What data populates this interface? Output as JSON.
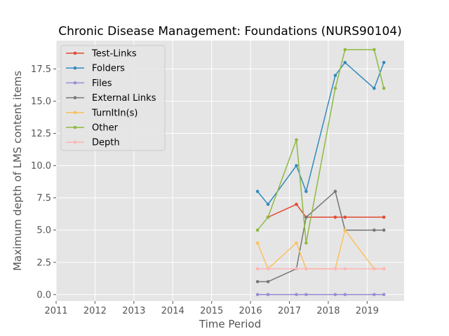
{
  "chart_data": {
    "type": "line",
    "title": "Chronic Disease Management: Foundations (NURS90104)",
    "xlabel": "Time Period",
    "ylabel": "Maximum depth of LMS content items",
    "xlim": [
      2011.0,
      2019.95
    ],
    "ylim": [
      -0.5,
      19.7
    ],
    "xticks": [
      2011,
      2012,
      2013,
      2014,
      2015,
      2016,
      2017,
      2018,
      2019
    ],
    "yticks": [
      0.0,
      2.5,
      5.0,
      7.5,
      10.0,
      12.5,
      15.0,
      17.5
    ],
    "ytick_labels": [
      "0.0",
      "2.5",
      "5.0",
      "7.5",
      "10.0",
      "12.5",
      "15.0",
      "17.5"
    ],
    "grid": true,
    "legend_position": "upper-left",
    "background": "#e5e5e5",
    "series": [
      {
        "name": "Test-Links",
        "color": "#e24a33",
        "points": [
          [
            2016.45,
            6
          ],
          [
            2017.18,
            7
          ],
          [
            2017.43,
            6
          ],
          [
            2018.18,
            6
          ],
          [
            2018.43,
            6
          ],
          [
            2019.43,
            6
          ]
        ]
      },
      {
        "name": "Folders",
        "color": "#348abd",
        "points": [
          [
            2016.18,
            8
          ],
          [
            2016.45,
            7
          ],
          [
            2017.18,
            10
          ],
          [
            2017.43,
            8
          ],
          [
            2018.18,
            17
          ],
          [
            2018.43,
            18
          ],
          [
            2019.18,
            16
          ],
          [
            2019.43,
            18
          ]
        ]
      },
      {
        "name": "Files",
        "color": "#988ed5",
        "points": [
          [
            2016.18,
            0
          ],
          [
            2016.45,
            0
          ],
          [
            2017.18,
            0
          ],
          [
            2017.43,
            0
          ],
          [
            2018.18,
            0
          ],
          [
            2018.43,
            0
          ],
          [
            2019.18,
            0
          ],
          [
            2019.43,
            0
          ]
        ]
      },
      {
        "name": "External Links",
        "color": "#777777",
        "points": [
          [
            2016.18,
            1
          ],
          [
            2016.45,
            1
          ],
          [
            2017.18,
            2
          ],
          [
            2017.43,
            6
          ],
          [
            2018.18,
            8
          ],
          [
            2018.43,
            5
          ],
          [
            2019.18,
            5
          ],
          [
            2019.43,
            5
          ]
        ]
      },
      {
        "name": "TurnItIn(s)",
        "color": "#fbc15e",
        "points": [
          [
            2016.18,
            4
          ],
          [
            2016.45,
            2
          ],
          [
            2017.18,
            4
          ],
          [
            2017.43,
            2
          ],
          [
            2018.18,
            2
          ],
          [
            2018.43,
            5
          ],
          [
            2019.18,
            2
          ],
          [
            2019.43,
            2
          ]
        ]
      },
      {
        "name": "Other",
        "color": "#8eba42",
        "points": [
          [
            2016.18,
            5
          ],
          [
            2016.45,
            6
          ],
          [
            2017.18,
            12
          ],
          [
            2017.43,
            4
          ],
          [
            2018.18,
            16
          ],
          [
            2018.43,
            19
          ],
          [
            2019.18,
            19
          ],
          [
            2019.43,
            16
          ]
        ]
      },
      {
        "name": "Depth",
        "color": "#ffb5b8",
        "points": [
          [
            2016.18,
            2
          ],
          [
            2016.45,
            2
          ],
          [
            2017.18,
            2
          ],
          [
            2017.43,
            2
          ],
          [
            2018.18,
            2
          ],
          [
            2018.43,
            2
          ],
          [
            2019.18,
            2
          ],
          [
            2019.43,
            2
          ]
        ]
      }
    ]
  }
}
